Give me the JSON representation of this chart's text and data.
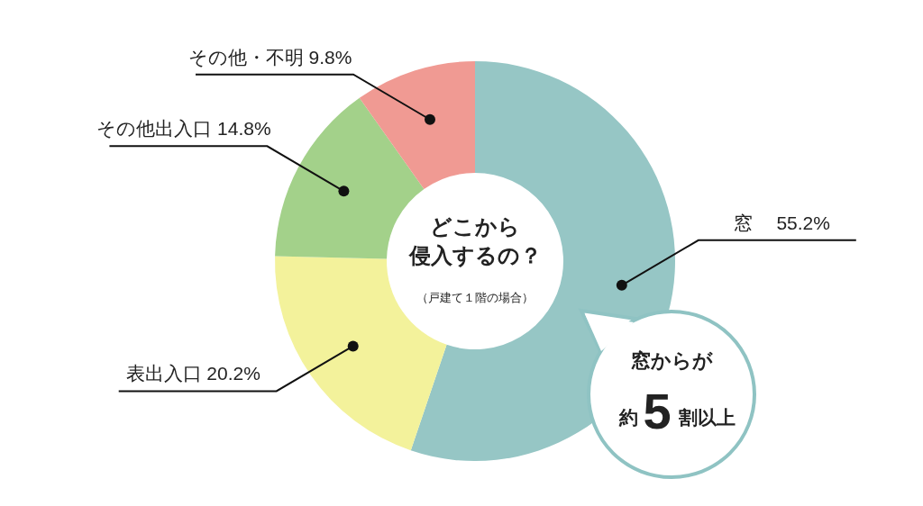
{
  "chart_data": {
    "type": "donut",
    "title": "どこから",
    "subtitle": "侵入するの？",
    "categories": [
      "窓　",
      "表出入口",
      "その他出入口",
      "その他・不明"
    ],
    "values": [
      55.2,
      20.2,
      14.8,
      9.8
    ],
    "colors": [
      "#96c6c5",
      "#f3f29b",
      "#a3d18a",
      "#f09a93"
    ],
    "value_labels": [
      "55.2%",
      "20.2%",
      "14.8%",
      "9.8%"
    ],
    "annotations": [
      "（戸建て１階の場合）",
      "窓からが",
      "約",
      "5",
      "割以上"
    ]
  }
}
